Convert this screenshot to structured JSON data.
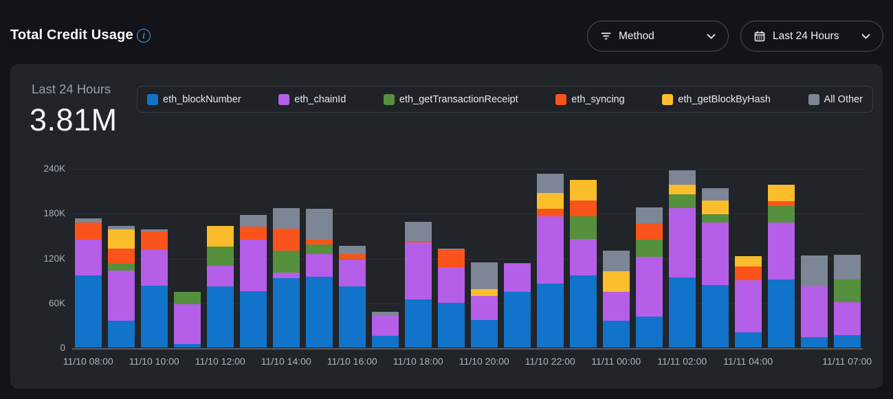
{
  "header": {
    "title": "Total Credit Usage",
    "info_tooltip": "i"
  },
  "filters": {
    "method": {
      "label": "Method"
    },
    "range": {
      "label": "Last 24 Hours"
    }
  },
  "stat": {
    "period_label": "Last 24 Hours",
    "total_value": "3.81M"
  },
  "colors": {
    "accent_blue": "#3e9ef0",
    "card_bg": "#212429",
    "page_bg": "#121419"
  },
  "chart_data": {
    "type": "bar",
    "stacked": true,
    "title": "Total Credit Usage - Last 24 Hours",
    "total": "3.81M",
    "ylim": [
      0,
      240000
    ],
    "grid": true,
    "legend_position": "top",
    "yticks": [
      {
        "value": 0,
        "label": "0"
      },
      {
        "value": 60000,
        "label": "60K"
      },
      {
        "value": 120000,
        "label": "120K"
      },
      {
        "value": 180000,
        "label": "180K"
      },
      {
        "value": 240000,
        "label": "240K"
      }
    ],
    "xticks": [
      {
        "bar": 0,
        "label": "11/10 08:00"
      },
      {
        "bar": 2,
        "label": "11/10 10:00"
      },
      {
        "bar": 4,
        "label": "11/10 12:00"
      },
      {
        "bar": 6,
        "label": "11/10 14:00"
      },
      {
        "bar": 8,
        "label": "11/10 16:00"
      },
      {
        "bar": 10,
        "label": "11/10 18:00"
      },
      {
        "bar": 12,
        "label": "11/10 20:00"
      },
      {
        "bar": 14,
        "label": "11/10 22:00"
      },
      {
        "bar": 16,
        "label": "11/11 00:00"
      },
      {
        "bar": 18,
        "label": "11/11 02:00"
      },
      {
        "bar": 20,
        "label": "11/11 04:00"
      },
      {
        "bar": 23,
        "label": "11/11 07:00"
      }
    ],
    "series": [
      {
        "name": "eth_blockNumber",
        "color": "#1173c9",
        "values": [
          96500,
          35500,
          83000,
          5000,
          82000,
          75500,
          93000,
          95000,
          81500,
          15500,
          64000,
          60000,
          37000,
          74500,
          85500,
          96500,
          35500,
          41500,
          94000,
          83500,
          20000,
          91000,
          14000,
          17000
        ]
      },
      {
        "name": "eth_chainId",
        "color": "#b55ee8",
        "values": [
          47500,
          67500,
          47500,
          52500,
          27500,
          69000,
          7500,
          30000,
          36000,
          26500,
          77000,
          47500,
          32000,
          37500,
          90000,
          48500,
          39000,
          80000,
          92500,
          83500,
          70000,
          76500,
          68000,
          43500
        ]
      },
      {
        "name": "eth_getTransactionReceipt",
        "color": "#55903c",
        "values": [
          0,
          9000,
          0,
          17000,
          25500,
          0,
          29000,
          13000,
          1500,
          0,
          0,
          0,
          0,
          1500,
          0,
          31000,
          0,
          22500,
          19000,
          11500,
          0,
          21500,
          0,
          30500
        ]
      },
      {
        "name": "eth_syncing",
        "color": "#fa541c",
        "values": [
          23000,
          20500,
          24500,
          0,
          0,
          17000,
          30000,
          6000,
          6000,
          0,
          1500,
          23000,
          0,
          0,
          10000,
          21000,
          0,
          22000,
          0,
          0,
          18500,
          6500,
          0,
          0
        ]
      },
      {
        "name": "eth_getBlockByHash",
        "color": "#fbbd2c",
        "values": [
          0,
          25500,
          0,
          0,
          27500,
          0,
          0,
          0,
          0,
          0,
          0,
          0,
          9000,
          0,
          21500,
          27500,
          28000,
          0,
          12000,
          18500,
          13500,
          22500,
          0,
          0
        ]
      },
      {
        "name": "All Other",
        "color": "#7d8695",
        "values": [
          5500,
          4500,
          3000,
          0,
          0,
          16000,
          27500,
          42000,
          11500,
          6000,
          25500,
          1500,
          36000,
          0,
          26000,
          0,
          27500,
          21500,
          19500,
          16000,
          0,
          0,
          41500,
          33000
        ]
      }
    ]
  }
}
